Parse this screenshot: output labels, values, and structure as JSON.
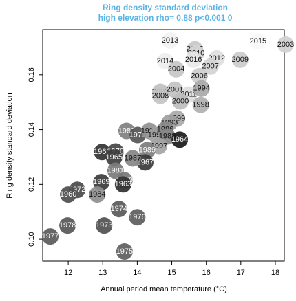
{
  "chart_data": {
    "type": "scatter",
    "title": "Ring density standard deviation",
    "subtitle": "high elevation rho= 0.88 p<0.001 0",
    "x_label": "Annual period mean temperature (°C)",
    "y_label": "Ring density standard deviation",
    "xlim": [
      11.26,
      18.26
    ],
    "ylim": [
      0.092,
      0.1765
    ],
    "xticks": [
      12,
      13,
      14,
      15,
      16,
      17,
      18
    ],
    "yticks": [
      {
        "value": 0.1,
        "label": "0.10"
      },
      0.12,
      0.14,
      0.16
    ],
    "labels": [
      "2013",
      "2015",
      "2003",
      "2005",
      "2010",
      "2016",
      "2012",
      "2009",
      "2014",
      "2007",
      "2004",
      "2006",
      "2002",
      "2008",
      "2001",
      "2011",
      "1994",
      "2000",
      "1998",
      "1999",
      "1993",
      "1982",
      "1971",
      "1990",
      "1996",
      "1986",
      "1988",
      "1964",
      "1997",
      "1989",
      "1967",
      "1987",
      "1968",
      "1970",
      "1965",
      "1981",
      "1969",
      "1979",
      "1963",
      "1972",
      "1960",
      "1984",
      "1974",
      "1976",
      "1978",
      "1973",
      "1977",
      "1975"
    ],
    "x": [
      14.95,
      17.5,
      18.3,
      15.67,
      15.71,
      15.63,
      16.3,
      16.98,
      14.81,
      16.12,
      15.13,
      15.8,
      14.67,
      14.67,
      15.09,
      15.49,
      15.86,
      15.25,
      15.84,
      15.15,
      14.93,
      13.69,
      14.01,
      14.35,
      14.55,
      14.81,
      14.87,
      15.23,
      14.63,
      14.29,
      14.23,
      13.87,
      12.98,
      13.37,
      13.33,
      13.37,
      12.96,
      13.63,
      13.59,
      12.26,
      12.0,
      12.84,
      13.47,
      14.0,
      11.98,
      13.04,
      11.48,
      13.63
    ],
    "y": [
      0.1725,
      0.1722,
      0.171,
      0.1693,
      0.1678,
      0.1655,
      0.166,
      0.1655,
      0.165,
      0.163,
      0.162,
      0.1595,
      0.1538,
      0.1523,
      0.1545,
      0.1528,
      0.155,
      0.1503,
      0.149,
      0.144,
      0.1425,
      0.1395,
      0.138,
      0.1395,
      0.138,
      0.14,
      0.1375,
      0.1363,
      0.134,
      0.1325,
      0.128,
      0.1295,
      0.1318,
      0.132,
      0.1298,
      0.125,
      0.1208,
      0.1215,
      0.12,
      0.118,
      0.1163,
      0.1163,
      0.111,
      0.108,
      0.105,
      0.105,
      0.101,
      0.0955
    ],
    "colors": [
      "#f2f2f2",
      "#f7f7f7",
      "#d0d0d0",
      "#c8c8c8",
      "#d8d8d8",
      "#e8e8e8",
      "#e0e0e0",
      "#cccccc",
      "#eeeeee",
      "#d3d3d3",
      "#c6c6c6",
      "#cdcdcd",
      "#c0c0c0",
      "#c4c4c4",
      "#c2c2c2",
      "#dcdcdc",
      "#a8a8a8",
      "#bdbdbd",
      "#b0b0b0",
      "#a9a9a9",
      "#a0a0a0",
      "#7f7f7f",
      "#555555",
      "#909090",
      "#a2a2a2",
      "#8a8a8a",
      "#888888",
      "#1a1a1a",
      "#a4a4a4",
      "#7c7c7c",
      "#3a3a3a",
      "#858585",
      "#333333",
      "#474747",
      "#3d3d3d",
      "#7a7a7a",
      "#3b3b3b",
      "#777777",
      "#303030",
      "#4a4a4a",
      "#4d4d4d",
      "#8e8e8e",
      "#595959",
      "#5c5c5c",
      "#575757",
      "#4f4f4f",
      "#5a5a5a",
      "#5e5e5e"
    ]
  }
}
